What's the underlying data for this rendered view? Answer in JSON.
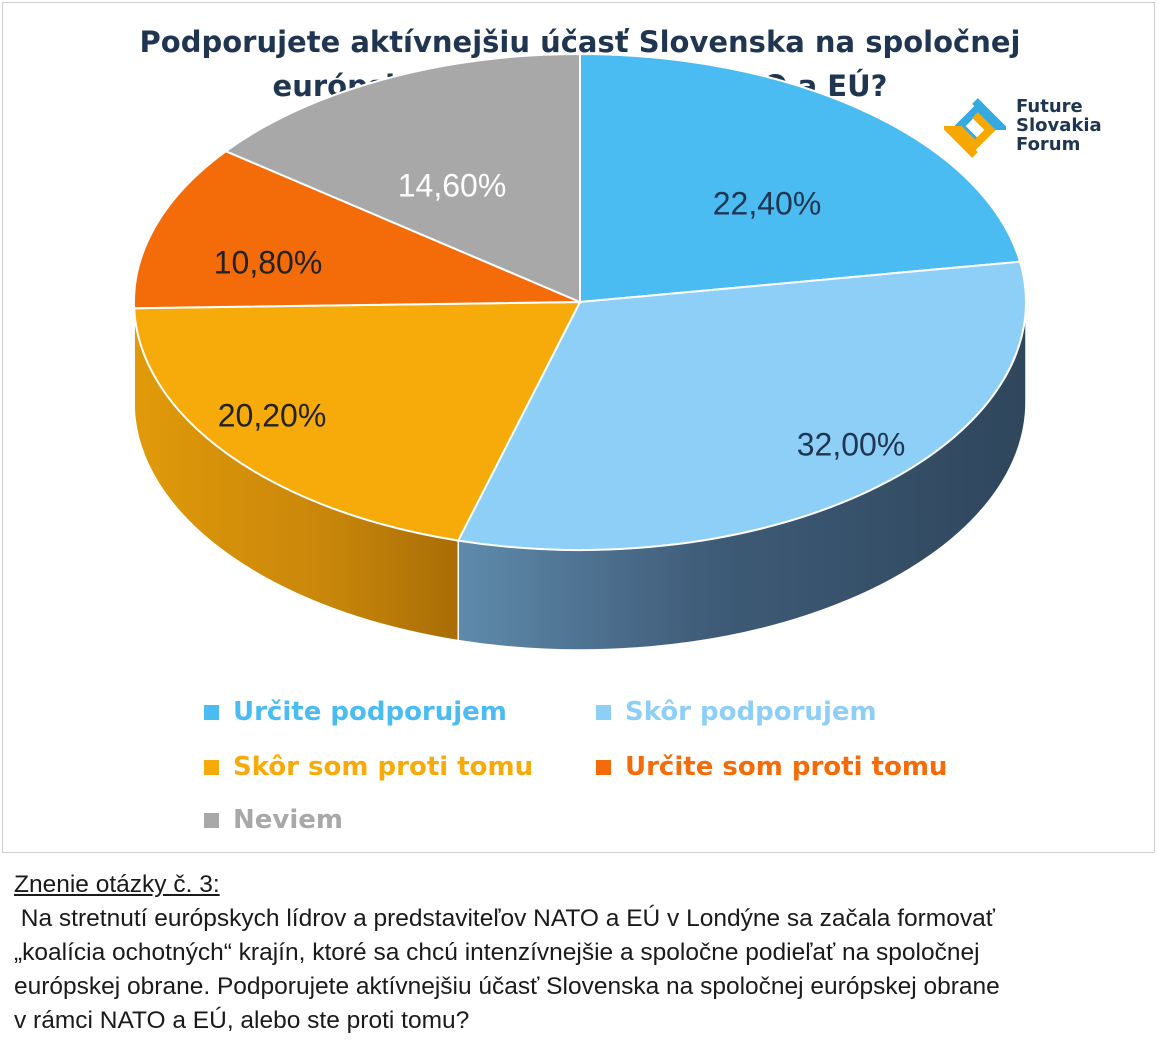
{
  "chart_data": {
    "type": "pie",
    "title": [
      "Podporujete aktívnejšiu účasť Slovenska na spoločnej",
      "európskej obrane v rámci NATO a EÚ?"
    ],
    "slices": [
      {
        "name": "Určite podporujem",
        "value": 22.4,
        "label": "22,40%",
        "color": "#4bbcf2",
        "label_color": "#1f3550"
      },
      {
        "name": "Skôr podporujem",
        "value": 32.0,
        "label": "32,00%",
        "color": "#8ecff8",
        "label_color": "#1f3550"
      },
      {
        "name": "Skôr som proti tomu",
        "value": 20.2,
        "label": "20,20%",
        "color": "#f7ab0b",
        "label_color": "#222222"
      },
      {
        "name": "Určite som proti tomu",
        "value": 10.8,
        "label": "10,80%",
        "color": "#f46b09",
        "label_color": "#222222"
      },
      {
        "name": "Neviem",
        "value": 14.6,
        "label": "14,60%",
        "color": "#a8a8a8",
        "label_color": "#ffffff"
      }
    ],
    "legend_position": "bottom"
  },
  "logo": {
    "lines": [
      "Future",
      "Slovakia",
      "Forum"
    ]
  },
  "question": {
    "heading": "Znenie otázky č. 3:",
    "lines": [
      " Na stretnutí európskych lídrov a predstaviteľov NATO a EÚ v Londýne sa začala formovať",
      "„koalícia ochotných“ krajín, ktoré sa chcú intenzívnejšie a spoločne podieľať na spoločnej",
      "európskej obrane. Podporujete aktívnejšiu účasť Slovenska na spoločnej európskej obrane",
      "v rámci NATO a EÚ, alebo ste proti tomu?"
    ]
  }
}
